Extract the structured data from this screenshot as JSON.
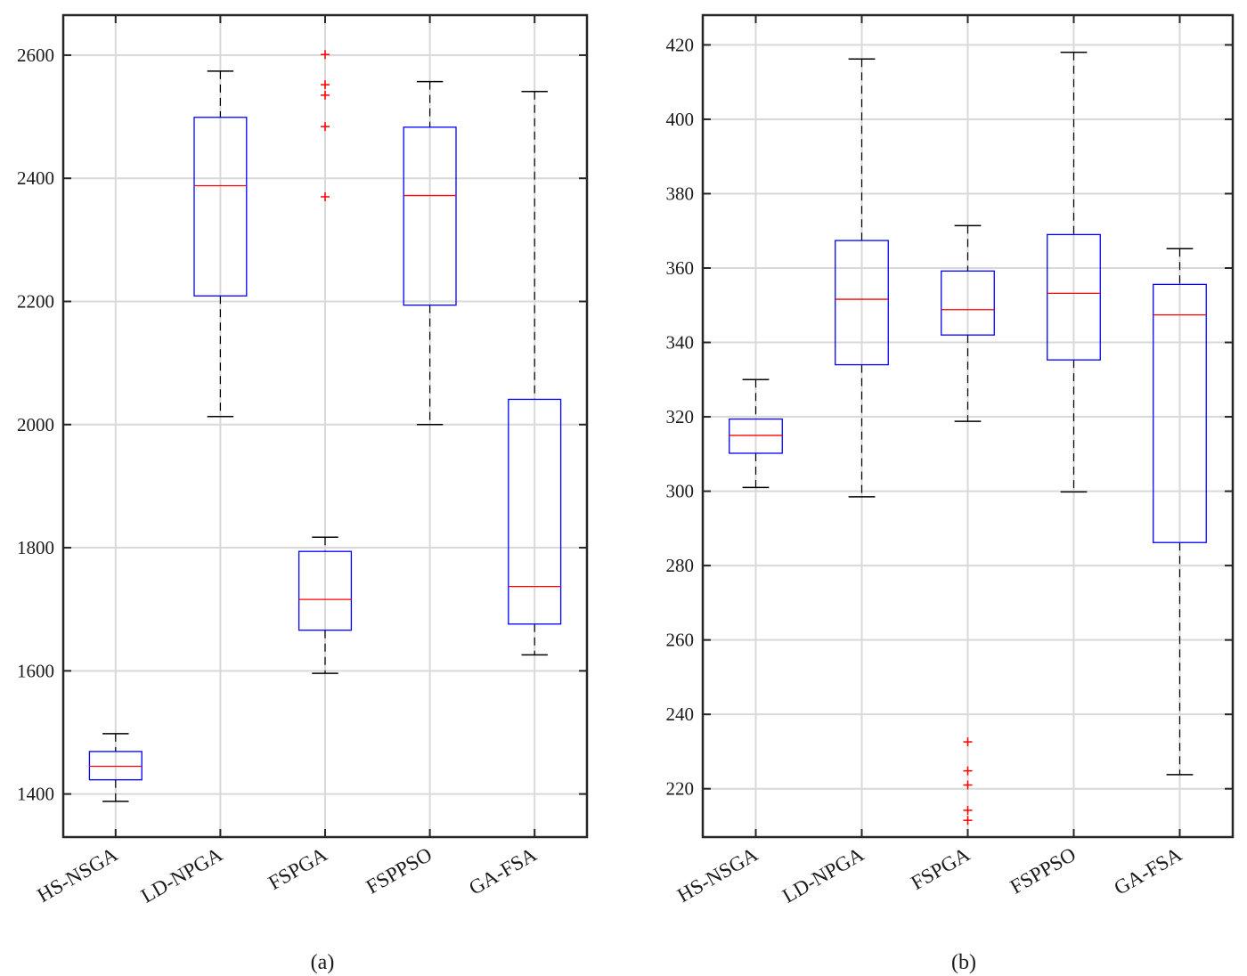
{
  "colors": {
    "box": "#0000ff",
    "median": "#ff0000",
    "whisker": "#000000",
    "outlier": "#ff0000",
    "grid": "#d9d9d9",
    "axis": "#262626"
  },
  "chart_data": [
    {
      "type": "boxplot",
      "caption": "(a)",
      "categories": [
        "HS-NSGA",
        "LD-NPGA",
        "FSPGA",
        "FSPPSO",
        "GA-FSA"
      ],
      "ylim": [
        1330,
        2665
      ],
      "yticks": [
        1400,
        1600,
        1800,
        2000,
        2200,
        2400,
        2600
      ],
      "grid": true,
      "boxes": [
        {
          "name": "HS-NSGA",
          "low": 1388,
          "q1": 1423,
          "median": 1445,
          "q3": 1469,
          "high": 1498,
          "outliers": []
        },
        {
          "name": "LD-NPGA",
          "low": 2013,
          "q1": 2209,
          "median": 2388,
          "q3": 2499,
          "high": 2574,
          "outliers": []
        },
        {
          "name": "FSPGA",
          "low": 1596,
          "q1": 1666,
          "median": 1716,
          "q3": 1794,
          "high": 1817,
          "outliers": [
            2370,
            2484,
            2535,
            2552,
            2601
          ]
        },
        {
          "name": "FSPPSO",
          "low": 2000,
          "q1": 2194,
          "median": 2372,
          "q3": 2483,
          "high": 2557,
          "outliers": []
        },
        {
          "name": "GA-FSA",
          "low": 1626,
          "q1": 1676,
          "median": 1737,
          "q3": 2041,
          "high": 2541,
          "outliers": []
        }
      ]
    },
    {
      "type": "boxplot",
      "caption": "(b)",
      "categories": [
        "HS-NSGA",
        "LD-NPGA",
        "FSPGA",
        "FSPPSO",
        "GA-FSA"
      ],
      "ylim": [
        207,
        428
      ],
      "yticks": [
        220,
        240,
        260,
        280,
        300,
        320,
        340,
        360,
        380,
        400,
        420
      ],
      "grid": true,
      "boxes": [
        {
          "name": "HS-NSGA",
          "low": 301,
          "q1": 310.2,
          "median": 315,
          "q3": 319.4,
          "high": 330,
          "outliers": []
        },
        {
          "name": "LD-NPGA",
          "low": 298.5,
          "q1": 334,
          "median": 351.6,
          "q3": 367.4,
          "high": 416.2,
          "outliers": []
        },
        {
          "name": "FSPGA",
          "low": 318.8,
          "q1": 342,
          "median": 348.8,
          "q3": 359.2,
          "high": 371.4,
          "outliers": [
            211.5,
            214.2,
            221,
            224.8,
            232.6
          ]
        },
        {
          "name": "FSPPSO",
          "low": 299.8,
          "q1": 335.3,
          "median": 353.2,
          "q3": 369,
          "high": 418,
          "outliers": []
        },
        {
          "name": "GA-FSA",
          "low": 223.8,
          "q1": 286.2,
          "median": 347.4,
          "q3": 355.6,
          "high": 365.2,
          "outliers": []
        }
      ]
    }
  ]
}
